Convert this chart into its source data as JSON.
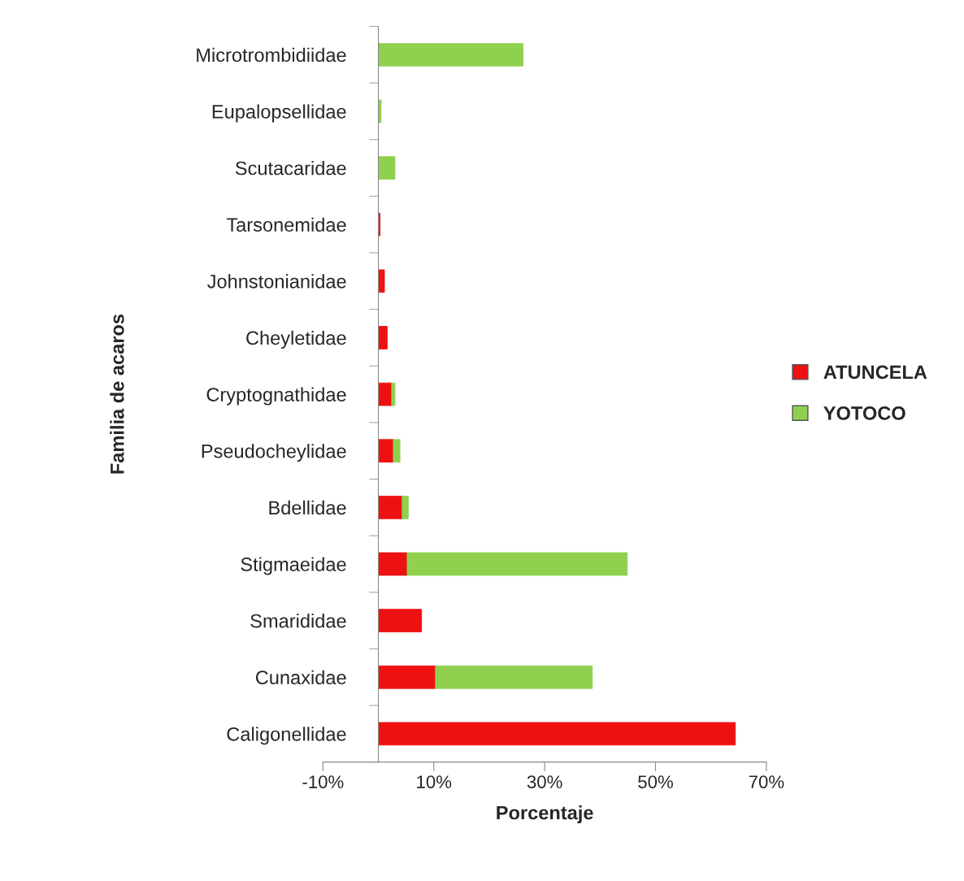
{
  "chart_data": {
    "type": "bar",
    "orientation": "horizontal",
    "stacked": true,
    "xlabel": "Porcentaje",
    "ylabel": "Familia de acaros",
    "categories": [
      "Microtrombidiidae",
      "Eupalopsellidae",
      "Scutacaridae",
      "Tarsonemidae",
      "Johnstonianidae",
      "Cheyletidae",
      "Cryptognathidae",
      "Pseudocheylidae",
      "Bdellidae",
      "Stigmaeidae",
      "Smarididae",
      "Cunaxidae",
      "Caligonellidae"
    ],
    "series": [
      {
        "name": "ATUNCELA",
        "color": "#ee1111",
        "values": [
          null,
          null,
          null,
          0.3,
          1.1,
          1.6,
          2.4,
          2.7,
          4.3,
          5.2,
          7.8,
          10.3,
          64.4
        ]
      },
      {
        "name": "YOTOCO",
        "color": "#8fd14f",
        "values": [
          26.1,
          0.5,
          3.0,
          null,
          null,
          null,
          0.6,
          1.2,
          1.1,
          39.7,
          null,
          28.3,
          null
        ]
      }
    ],
    "xlim": [
      -10,
      70
    ],
    "xticks": [
      {
        "value": -10,
        "label": "-10%"
      },
      {
        "value": 10,
        "label": "10%"
      },
      {
        "value": 30,
        "label": "30%"
      },
      {
        "value": 50,
        "label": "50%"
      },
      {
        "value": 70,
        "label": "70%"
      }
    ],
    "grid": false,
    "legend": "right"
  }
}
